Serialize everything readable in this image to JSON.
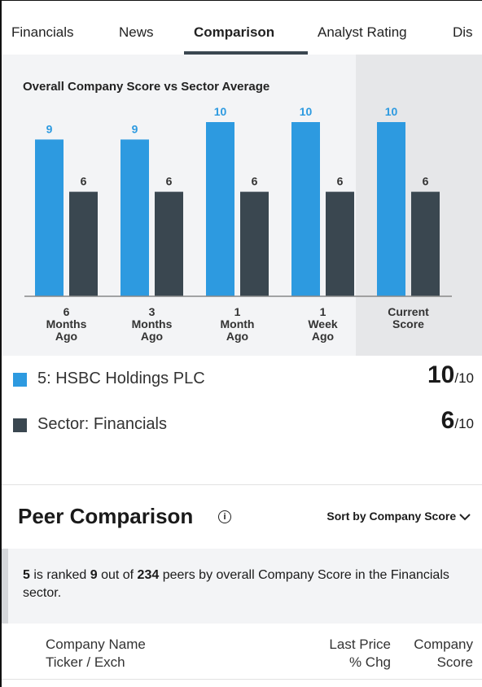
{
  "tabs": [
    "Financials",
    "News",
    "Comparison",
    "Analyst Rating",
    "Dis"
  ],
  "active_tab": 2,
  "chart_data": {
    "type": "bar",
    "title": "Overall Company Score vs Sector Average",
    "categories": [
      "6 Months Ago",
      "3 Months Ago",
      "1 Month Ago",
      "1 Week Ago",
      "Current Score"
    ],
    "series": [
      {
        "name": "5: HSBC Holdings PLC",
        "color": "#2d9ae0",
        "values": [
          9,
          9,
          10,
          10,
          10
        ]
      },
      {
        "name": "Sector: Financials",
        "color": "#3a4750",
        "values": [
          6,
          6,
          6,
          6,
          6
        ]
      }
    ],
    "ylim": [
      0,
      10
    ]
  },
  "legend_scores": [
    {
      "score": "10",
      "out_of": "/10"
    },
    {
      "score": "6",
      "out_of": "/10"
    }
  ],
  "peer": {
    "title": "Peer Comparison",
    "sort": "Sort by Company Score",
    "ranking": [
      "5",
      " is ranked ",
      "9",
      " out of ",
      "234",
      " peers by overall Company Score in the Financials sector."
    ],
    "columns": [
      [
        "Company Name",
        "Ticker / Exch"
      ],
      [
        "Last Price",
        "% Chg"
      ],
      [
        "Company",
        "Score"
      ]
    ]
  }
}
